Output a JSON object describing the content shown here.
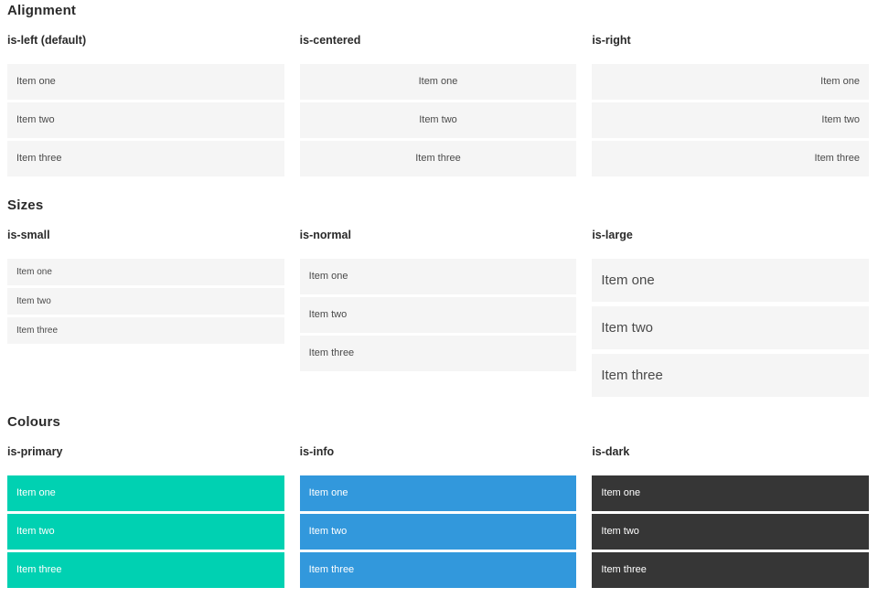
{
  "colors": {
    "primary": "#00d1b2",
    "info": "#3298dc",
    "dark": "#363636",
    "item_background": "#f5f5f5",
    "item_text": "#4a4a4a",
    "heading_text": "#2a2a2a"
  },
  "sections": [
    {
      "title": "Alignment",
      "columns": [
        {
          "heading": "is-left (default)",
          "items": [
            "Item one",
            "Item two",
            "Item three"
          ]
        },
        {
          "heading": "is-centered",
          "items": [
            "Item one",
            "Item two",
            "Item three"
          ]
        },
        {
          "heading": "is-right",
          "items": [
            "Item one",
            "Item two",
            "Item three"
          ]
        }
      ]
    },
    {
      "title": "Sizes",
      "columns": [
        {
          "heading": "is-small",
          "items": [
            "Item one",
            "Item two",
            "Item three"
          ]
        },
        {
          "heading": "is-normal",
          "items": [
            "Item one",
            "Item two",
            "Item three"
          ]
        },
        {
          "heading": "is-large",
          "items": [
            "Item one",
            "Item two",
            "Item three"
          ]
        }
      ]
    },
    {
      "title": "Colours",
      "columns": [
        {
          "heading": "is-primary",
          "items": [
            "Item one",
            "Item two",
            "Item three"
          ]
        },
        {
          "heading": "is-info",
          "items": [
            "Item one",
            "Item two",
            "Item three"
          ]
        },
        {
          "heading": "is-dark",
          "items": [
            "Item one",
            "Item two",
            "Item three"
          ]
        }
      ]
    }
  ]
}
